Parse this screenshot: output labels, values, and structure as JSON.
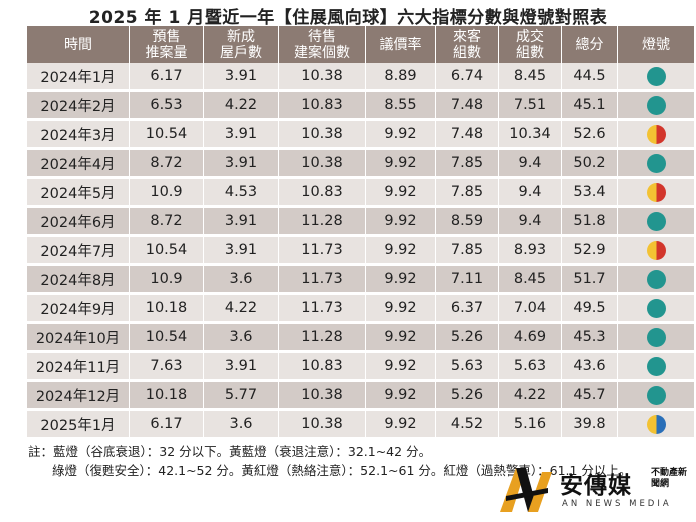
{
  "title": "2025 年 1 月暨近一年【住展風向球】六大指標分數與燈號對照表",
  "headers": [
    {
      "line1": "時間",
      "line2": ""
    },
    {
      "line1": "預售",
      "line2": "推案量"
    },
    {
      "line1": "新成",
      "line2": "屋戶數"
    },
    {
      "line1": "待售",
      "line2": "建案個數"
    },
    {
      "line1": "議價率",
      "line2": ""
    },
    {
      "line1": "來客",
      "line2": "組數"
    },
    {
      "line1": "成交",
      "line2": "組數"
    },
    {
      "line1": "總分",
      "line2": ""
    },
    {
      "line1": "燈號",
      "line2": ""
    }
  ],
  "rows": [
    {
      "time": "2024年1月",
      "presale": "6.17",
      "new_units": "3.91",
      "pending": "10.38",
      "bargain": "8.89",
      "visitors": "6.74",
      "deals": "8.45",
      "total": "44.5",
      "light": "green"
    },
    {
      "time": "2024年2月",
      "presale": "6.53",
      "new_units": "4.22",
      "pending": "10.83",
      "bargain": "8.55",
      "visitors": "7.48",
      "deals": "7.51",
      "total": "45.1",
      "light": "green"
    },
    {
      "time": "2024年3月",
      "presale": "10.54",
      "new_units": "3.91",
      "pending": "10.38",
      "bargain": "9.92",
      "visitors": "7.48",
      "deals": "10.34",
      "total": "52.6",
      "light": "yellow-red"
    },
    {
      "time": "2024年4月",
      "presale": "8.72",
      "new_units": "3.91",
      "pending": "10.38",
      "bargain": "9.92",
      "visitors": "7.85",
      "deals": "9.4",
      "total": "50.2",
      "light": "green"
    },
    {
      "time": "2024年5月",
      "presale": "10.9",
      "new_units": "4.53",
      "pending": "10.83",
      "bargain": "9.92",
      "visitors": "7.85",
      "deals": "9.4",
      "total": "53.4",
      "light": "yellow-red"
    },
    {
      "time": "2024年6月",
      "presale": "8.72",
      "new_units": "3.91",
      "pending": "11.28",
      "bargain": "9.92",
      "visitors": "8.59",
      "deals": "9.4",
      "total": "51.8",
      "light": "green"
    },
    {
      "time": "2024年7月",
      "presale": "10.54",
      "new_units": "3.91",
      "pending": "11.73",
      "bargain": "9.92",
      "visitors": "7.85",
      "deals": "8.93",
      "total": "52.9",
      "light": "yellow-red"
    },
    {
      "time": "2024年8月",
      "presale": "10.9",
      "new_units": "3.6",
      "pending": "11.73",
      "bargain": "9.92",
      "visitors": "7.11",
      "deals": "8.45",
      "total": "51.7",
      "light": "green"
    },
    {
      "time": "2024年9月",
      "presale": "10.18",
      "new_units": "4.22",
      "pending": "11.73",
      "bargain": "9.92",
      "visitors": "6.37",
      "deals": "7.04",
      "total": "49.5",
      "light": "green"
    },
    {
      "time": "2024年10月",
      "presale": "10.54",
      "new_units": "3.6",
      "pending": "11.28",
      "bargain": "9.92",
      "visitors": "5.26",
      "deals": "4.69",
      "total": "45.3",
      "light": "green"
    },
    {
      "time": "2024年11月",
      "presale": "7.63",
      "new_units": "3.91",
      "pending": "10.83",
      "bargain": "9.92",
      "visitors": "5.63",
      "deals": "5.63",
      "total": "43.6",
      "light": "green"
    },
    {
      "time": "2024年12月",
      "presale": "10.18",
      "new_units": "5.77",
      "pending": "10.38",
      "bargain": "9.92",
      "visitors": "5.26",
      "deals": "4.22",
      "total": "45.7",
      "light": "green"
    },
    {
      "time": "2025年1月",
      "presale": "6.17",
      "new_units": "3.6",
      "pending": "10.38",
      "bargain": "9.92",
      "visitors": "4.52",
      "deals": "5.16",
      "total": "39.8",
      "light": "yellow-blue"
    }
  ],
  "colors": {
    "header_bg": "#8c7b73",
    "row_light": "#e8e3e0",
    "row_dark": "#d3cbc7",
    "green": "#22958f",
    "yellow": "#f3c233",
    "red": "#d2352b",
    "blue": "#2a6fb8"
  },
  "notes": {
    "line1": "註：藍燈（谷底衰退）：32 分以下。黃藍燈（衰退注意）：32.1~42 分。",
    "line2": "綠燈（復甦安全）：42.1~52 分。黃紅燈（熱絡注意）：52.1~61 分。紅燈（過熱警車）：61.1 分以上。"
  },
  "logo": {
    "name": "安傳媒",
    "sub": "不動產新聞網",
    "english": "AN NEWS MEDIA"
  }
}
